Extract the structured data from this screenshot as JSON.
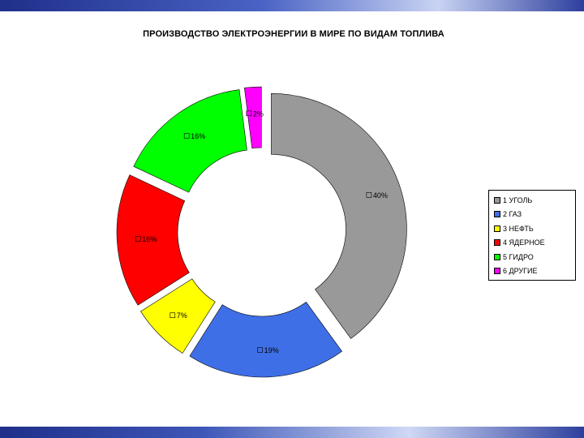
{
  "chart_data": {
    "type": "pie",
    "variant": "exploded-donut",
    "title": "ПРОИЗВОДСТВО ЭЛЕКТРОЭНЕРГИИ В МИРЕ ПО ВИДАМ ТОПЛИВА",
    "legend_position": "right",
    "slices": [
      {
        "legend": "1 УГОЛЬ",
        "label": "40%",
        "value": 40,
        "color": "#999999"
      },
      {
        "legend": "2 ГАЗ",
        "label": "19%",
        "value": 19,
        "color": "#3f6fe6"
      },
      {
        "legend": "3 НЕФТЬ",
        "label": "7%",
        "value": 7,
        "color": "#ffff00"
      },
      {
        "legend": "4 ЯДЕРНОЕ",
        "label": "16%",
        "value": 16,
        "color": "#ff0000"
      },
      {
        "legend": "5 ГИДРО",
        "label": "16%",
        "value": 16,
        "color": "#00ff00"
      },
      {
        "legend": "6 ДРУГИЕ",
        "label": "2%",
        "value": 2,
        "color": "#ff00ff"
      }
    ]
  }
}
